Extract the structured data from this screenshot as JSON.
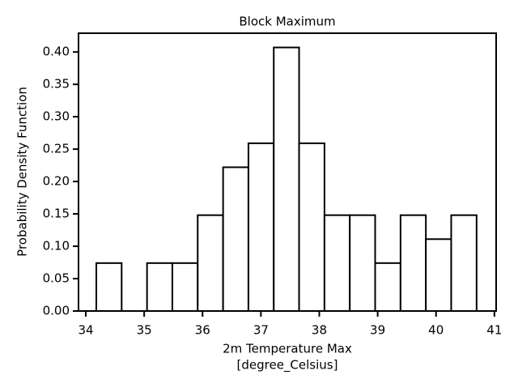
{
  "chart_data": {
    "type": "histogram",
    "title": "Block Maximum",
    "xlabel": [
      "2m Temperature Max",
      "[degree_Celsius]"
    ],
    "ylabel": "Probability Density Function",
    "bins": [
      34.18,
      34.614,
      35.049,
      35.483,
      35.917,
      36.352,
      36.786,
      37.22,
      37.654,
      38.089,
      38.523,
      38.957,
      39.392,
      39.826,
      40.26,
      40.695
    ],
    "values": [
      0.074,
      0,
      0.074,
      0.074,
      0.148,
      0.222,
      0.259,
      0.407,
      0.259,
      0.148,
      0.148,
      0.074,
      0.148,
      0.111,
      0.148
    ],
    "color": "#ffffff",
    "edgecolor": "#000000",
    "xlim": [
      33.875,
      41.03
    ],
    "ylim": [
      0,
      0.429
    ],
    "xticks": [
      34,
      35,
      36,
      37,
      38,
      39,
      40,
      41
    ],
    "yticks": [
      {
        "value": 0,
        "label": "0.00"
      },
      {
        "value": 0.05,
        "label": "0.05"
      },
      {
        "value": 0.1,
        "label": "0.10"
      },
      {
        "value": 0.15,
        "label": "0.15"
      },
      {
        "value": 0.2,
        "label": "0.20"
      },
      {
        "value": 0.25,
        "label": "0.25"
      },
      {
        "value": 0.3,
        "label": "0.30"
      },
      {
        "value": 0.35,
        "label": "0.35"
      },
      {
        "value": 0.4,
        "label": "0.40"
      }
    ],
    "grid": false
  }
}
